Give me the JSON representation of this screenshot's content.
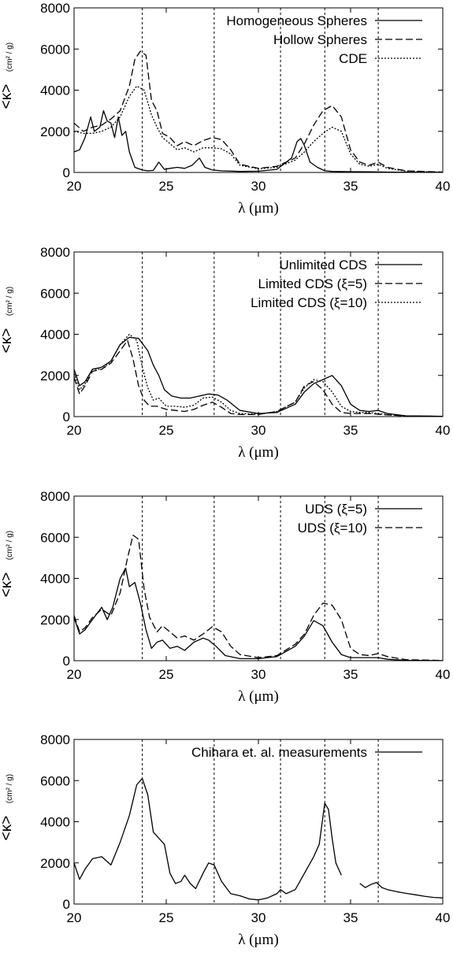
{
  "chart_data": [
    {
      "type": "line",
      "xlabel": "λ (μm)",
      "ylabel": "<κ>",
      "ylabel_unit": "(cm² / g)",
      "xlim": [
        20,
        40
      ],
      "ylim": [
        0,
        8000
      ],
      "xticks": [
        20,
        25,
        30,
        35,
        40
      ],
      "yticks": [
        0,
        2000,
        4000,
        6000,
        8000
      ],
      "vlines": [
        23.7,
        27.6,
        31.2,
        33.6,
        36.5
      ],
      "legend_position": "top-right",
      "series": [
        {
          "name": "Homogeneous Spheres",
          "style": "solid",
          "x": [
            20,
            20.3,
            20.6,
            20.9,
            21.1,
            21.4,
            21.6,
            21.8,
            22.0,
            22.2,
            22.4,
            22.6,
            22.8,
            23.0,
            23.3,
            23.7,
            24.0,
            24.3,
            24.6,
            24.9,
            25.2,
            25.6,
            26.0,
            26.4,
            26.8,
            27.1,
            27.5,
            28,
            29,
            30,
            31,
            31.8,
            32.1,
            32.3,
            32.5,
            32.8,
            33.2,
            33.6,
            34,
            35,
            36,
            37,
            38,
            40
          ],
          "y": [
            1000,
            1100,
            1700,
            2700,
            2000,
            2200,
            3000,
            2500,
            2400,
            1700,
            2700,
            1800,
            2000,
            1000,
            250,
            120,
            80,
            100,
            500,
            150,
            200,
            250,
            200,
            350,
            700,
            250,
            120,
            80,
            50,
            60,
            150,
            700,
            1500,
            1650,
            1300,
            500,
            250,
            80,
            50,
            40,
            30,
            20,
            10,
            5
          ]
        },
        {
          "name": "Hollow Spheres",
          "style": "dashed",
          "x": [
            20,
            20.5,
            21,
            21.5,
            22,
            22.5,
            23,
            23.3,
            23.6,
            23.9,
            24.2,
            24.5,
            24.8,
            25.2,
            25.6,
            26,
            26.5,
            27,
            27.5,
            28,
            28.5,
            29,
            30,
            31,
            32,
            32.5,
            33,
            33.5,
            34,
            34.5,
            35,
            35.5,
            36,
            36.5,
            37,
            38,
            40
          ],
          "y": [
            2400,
            2000,
            2200,
            2300,
            2600,
            3000,
            4200,
            5500,
            5900,
            5700,
            3500,
            3000,
            1900,
            1700,
            1300,
            1500,
            1300,
            1550,
            1700,
            1600,
            1100,
            400,
            200,
            300,
            700,
            1400,
            2300,
            3000,
            3250,
            2700,
            1100,
            500,
            350,
            500,
            250,
            80,
            20
          ]
        },
        {
          "name": "CDE",
          "style": "dotted",
          "x": [
            20,
            20.5,
            21,
            21.5,
            22,
            22.5,
            23,
            23.4,
            23.8,
            24.2,
            24.5,
            24.8,
            25.2,
            25.6,
            26,
            26.5,
            27,
            27.5,
            28,
            28.5,
            29,
            30,
            31,
            32,
            32.5,
            33,
            33.5,
            34,
            34.5,
            35,
            35.5,
            36,
            36.5,
            37,
            38,
            40
          ],
          "y": [
            2000,
            1900,
            1900,
            2000,
            2200,
            2700,
            3700,
            4200,
            4000,
            2800,
            2200,
            1700,
            1400,
            1100,
            1200,
            1000,
            1200,
            1200,
            1150,
            900,
            350,
            180,
            250,
            600,
            1000,
            1500,
            1900,
            2200,
            2000,
            900,
            400,
            300,
            400,
            200,
            60,
            15
          ]
        }
      ]
    },
    {
      "type": "line",
      "xlabel": "λ (μm)",
      "ylabel": "<κ>",
      "ylabel_unit": "(cm² / g)",
      "xlim": [
        20,
        40
      ],
      "ylim": [
        0,
        8000
      ],
      "xticks": [
        20,
        25,
        30,
        35,
        40
      ],
      "yticks": [
        0,
        2000,
        4000,
        6000,
        8000
      ],
      "vlines": [
        23.7,
        27.6,
        31.2,
        33.6,
        36.5
      ],
      "legend_position": "top-right",
      "series": [
        {
          "name": "Unlimited CDS",
          "style": "solid",
          "x": [
            20,
            20.3,
            20.6,
            21,
            21.5,
            22,
            22.5,
            23,
            23.5,
            24,
            24.3,
            24.6,
            24.9,
            25.3,
            25.8,
            26.3,
            26.8,
            27.3,
            27.8,
            28.3,
            29,
            30,
            31,
            32,
            32.5,
            33,
            33.5,
            34,
            34.5,
            35,
            35.5,
            36,
            36.5,
            37,
            38,
            40
          ],
          "y": [
            2300,
            1500,
            1700,
            2300,
            2400,
            2700,
            3500,
            3850,
            3800,
            3200,
            2500,
            2000,
            1300,
            1000,
            900,
            900,
            1000,
            1100,
            1050,
            800,
            300,
            150,
            200,
            600,
            1200,
            1600,
            1800,
            2000,
            1500,
            600,
            300,
            250,
            300,
            150,
            40,
            10
          ]
        },
        {
          "name": "Limited CDS (ξ=5)",
          "style": "dashed",
          "x": [
            20,
            20.3,
            20.6,
            21,
            21.5,
            22,
            22.5,
            22.9,
            23.2,
            23.5,
            23.8,
            24.1,
            24.5,
            25,
            25.5,
            26,
            26.5,
            27,
            27.5,
            28,
            28.5,
            29,
            30,
            31,
            32,
            32.5,
            33,
            33.5,
            34,
            34.5,
            35,
            35.5,
            36,
            37,
            38,
            40
          ],
          "y": [
            1900,
            1100,
            1500,
            2200,
            2300,
            2600,
            3200,
            3700,
            2800,
            1500,
            800,
            500,
            500,
            350,
            300,
            250,
            350,
            550,
            700,
            450,
            150,
            100,
            100,
            250,
            700,
            1500,
            1700,
            1300,
            600,
            200,
            150,
            150,
            150,
            80,
            30,
            10
          ]
        },
        {
          "name": "Limited CDS (ξ=10)",
          "style": "dotted",
          "x": [
            20,
            20.3,
            20.6,
            21,
            21.5,
            22,
            22.5,
            23,
            23.4,
            23.7,
            24,
            24.3,
            24.6,
            25,
            25.5,
            26,
            26.5,
            27,
            27.5,
            28,
            28.5,
            29,
            30,
            31,
            32,
            32.5,
            33,
            33.5,
            34,
            34.5,
            35,
            35.5,
            36,
            37,
            38,
            40
          ],
          "y": [
            2100,
            1300,
            1600,
            2300,
            2300,
            2700,
            3500,
            4000,
            3700,
            2400,
            1400,
            800,
            900,
            500,
            500,
            450,
            550,
            900,
            950,
            700,
            300,
            150,
            120,
            250,
            700,
            1400,
            1800,
            1700,
            1200,
            500,
            250,
            200,
            200,
            100,
            30,
            10
          ]
        }
      ]
    },
    {
      "type": "line",
      "xlabel": "λ (μm)",
      "ylabel": "<κ>",
      "ylabel_unit": "(cm² / g)",
      "xlim": [
        20,
        40
      ],
      "ylim": [
        0,
        8000
      ],
      "xticks": [
        20,
        25,
        30,
        35,
        40
      ],
      "yticks": [
        0,
        2000,
        4000,
        6000,
        8000
      ],
      "vlines": [
        23.7,
        27.6,
        31.2,
        33.6,
        36.5
      ],
      "legend_position": "top-right",
      "series": [
        {
          "name": "UDS (ξ=5)",
          "style": "solid",
          "x": [
            20,
            20.3,
            20.6,
            21,
            21.5,
            21.8,
            22.1,
            22.5,
            22.8,
            23.0,
            23.3,
            23.6,
            23.9,
            24.2,
            24.5,
            24.8,
            25.2,
            25.6,
            26,
            26.5,
            27,
            27.3,
            27.7,
            28.2,
            29,
            30,
            31,
            32,
            32.5,
            33,
            33.5,
            34,
            34.5,
            35,
            35.5,
            36,
            36.5,
            37,
            38,
            40
          ],
          "y": [
            2100,
            1300,
            1500,
            2000,
            2600,
            2000,
            2600,
            4000,
            4500,
            3600,
            3800,
            2800,
            1500,
            600,
            900,
            1000,
            600,
            700,
            500,
            900,
            1100,
            1000,
            700,
            250,
            100,
            100,
            200,
            700,
            1200,
            1950,
            1700,
            900,
            300,
            150,
            150,
            150,
            150,
            70,
            20,
            5
          ]
        },
        {
          "name": "UDS (ξ=10)",
          "style": "dashed",
          "x": [
            20,
            20.3,
            20.6,
            21,
            21.5,
            22,
            22.5,
            22.9,
            23.2,
            23.5,
            23.8,
            24.1,
            24.5,
            24.8,
            25.2,
            25.6,
            26,
            26.5,
            27,
            27.5,
            28,
            28.5,
            29,
            30,
            31,
            32,
            32.5,
            33,
            33.5,
            34,
            34.5,
            35,
            35.5,
            36,
            36.5,
            37,
            38,
            40
          ],
          "y": [
            2200,
            1400,
            1600,
            2100,
            2500,
            2200,
            3300,
            5000,
            6100,
            5900,
            3500,
            2100,
            1400,
            1700,
            1400,
            1100,
            1200,
            1000,
            1300,
            1650,
            1400,
            700,
            300,
            150,
            250,
            800,
            1300,
            2200,
            2800,
            2700,
            2000,
            600,
            300,
            250,
            350,
            200,
            50,
            10
          ]
        }
      ]
    },
    {
      "type": "line",
      "xlabel": "λ (μm)",
      "ylabel": "<κ>",
      "ylabel_unit": "(cm² / g)",
      "xlim": [
        20,
        40
      ],
      "ylim": [
        0,
        8000
      ],
      "xticks": [
        20,
        25,
        30,
        35,
        40
      ],
      "yticks": [
        0,
        2000,
        4000,
        6000,
        8000
      ],
      "vlines": [
        23.7,
        27.6,
        31.2,
        33.6,
        36.5
      ],
      "legend_position": "top-right",
      "series": [
        {
          "name": "Chihara et. al. measurements",
          "style": "solid",
          "x": [
            20,
            20.3,
            20.6,
            21,
            21.5,
            22,
            22.5,
            23,
            23.4,
            23.7,
            24,
            24.3,
            24.6,
            24.9,
            25.2,
            25.5,
            25.8,
            26,
            26.3,
            26.6,
            27,
            27.3,
            27.6,
            28,
            28.5,
            29,
            29.5,
            30,
            30.5,
            31,
            31.2,
            31.5,
            32,
            32.5,
            33,
            33.3,
            33.6,
            33.8,
            34,
            34.2,
            34.5
          ],
          "y": [
            2000,
            1200,
            1700,
            2200,
            2300,
            1900,
            3000,
            4300,
            5800,
            6100,
            5300,
            3500,
            3200,
            2900,
            1500,
            1000,
            1100,
            1400,
            1000,
            750,
            1500,
            2000,
            1900,
            1100,
            500,
            400,
            250,
            200,
            300,
            500,
            700,
            500,
            700,
            1500,
            2300,
            2900,
            4900,
            4600,
            3200,
            2000,
            1400
          ]
        },
        {
          "name": "",
          "style": "solid",
          "x": [
            35.5,
            35.8,
            36.1,
            36.4,
            36.7,
            37,
            37.5,
            38,
            38.5,
            39,
            39.5,
            40
          ],
          "y": [
            1000,
            800,
            950,
            1050,
            800,
            700,
            600,
            520,
            450,
            380,
            320,
            300
          ]
        }
      ]
    }
  ]
}
